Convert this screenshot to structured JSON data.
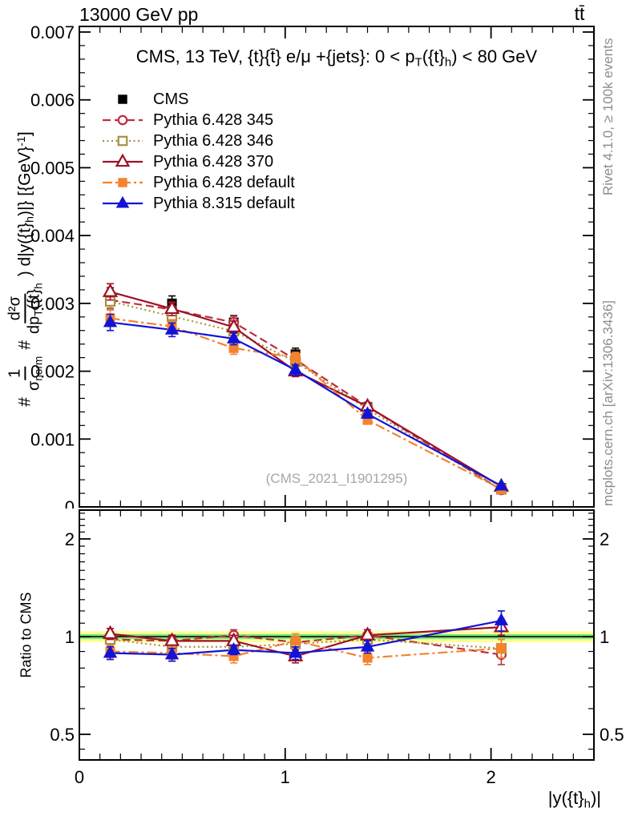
{
  "header": {
    "beam_energy": "13000 GeV pp",
    "process": "tt̄"
  },
  "title": "CMS, 13 TeV, {t}{t̄} e/μ +{jets}: 0 <  p_{T}({t}_{h}) < 80 GeV",
  "watermark": "(CMS_2021_I1901295)",
  "right_margin": {
    "generator_info": "Rivet 4.1.0, ≥ 100k events",
    "site_info": "mcplots.cern.ch [arXiv:1306.3436]"
  },
  "ylabel": {
    "prefix1": "#",
    "frac1_num": "1",
    "frac1_den": "σ_{norm}",
    "prefix2": "#",
    "frac2_num": "d²σ",
    "frac2_den": "dp_{T}({t}_{h}",
    "suffix": ") d|y({t}_{h})|} [{GeV}^{-1}]"
  },
  "ratio_ylabel": "Ratio to CMS",
  "xlabel": "|y({t}_{h})|",
  "chart_data": {
    "type": "line",
    "title": "CMS, 13 TeV, {t}{t̄} e/μ +{jets}: 0 < p_T({t}_h) < 80 GeV",
    "xlabel": "|y({t}_h)|",
    "ylabel": "1/σ_norm d²σ/dp_T({t}_h) d|y({t}_h)| [GeV⁻¹]",
    "ratio_ylabel": "Ratio to CMS",
    "xlim": [
      0,
      2.5
    ],
    "ylim": [
      0,
      0.00708
    ],
    "ratio_ylim": [
      0.417,
      2.44
    ],
    "grid": false,
    "legend_position": "upper-left-inside",
    "x": [
      0.15,
      0.45,
      0.75,
      1.05,
      1.4,
      2.05
    ],
    "bin_edges": [
      0,
      0.3,
      0.6,
      0.9,
      1.2,
      1.6,
      2.5
    ],
    "axes": {
      "xticks": [
        {
          "v": 0,
          "t": "0"
        },
        {
          "v": 1,
          "t": "1"
        },
        {
          "v": 2,
          "t": "2"
        }
      ],
      "main_yticks": [
        {
          "v": 0.001,
          "t": "0.001"
        },
        {
          "v": 0.002,
          "t": "0.002"
        },
        {
          "v": 0.003,
          "t": "0.003"
        },
        {
          "v": 0.004,
          "t": "0.004"
        },
        {
          "v": 0.005,
          "t": "0.005"
        },
        {
          "v": 0.006,
          "t": "0.006"
        },
        {
          "v": 0.007,
          "t": "0.007"
        }
      ],
      "main_ytick_zero": {
        "v": 0,
        "t": "0"
      },
      "ratio_yticks": [
        {
          "v": 0.5,
          "t": "0.5"
        },
        {
          "v": 1,
          "t": "1"
        },
        {
          "v": 2,
          "t": "2"
        }
      ]
    },
    "band": {
      "center": 1.0,
      "yellow_range": [
        0.96,
        1.04
      ],
      "green_range": [
        0.982,
        1.018
      ],
      "yellow_color": "#ffff99",
      "green_color": "#7fe87f"
    },
    "series": [
      {
        "name": "CMS",
        "slug": "cms",
        "color": "#000000",
        "line": "none",
        "marker": "square",
        "filled": true,
        "values": [
          0.0031,
          0.003,
          0.00272,
          0.00225,
          0.00147,
          0.00028
        ],
        "errors": [
          0.00013,
          0.00011,
          0.0001,
          9e-05,
          6e-05,
          3e-05
        ]
      },
      {
        "name": "Pythia 6.428 345",
        "slug": "pythia-6428-345",
        "color": "#bc2f42",
        "line": "dashed",
        "marker": "circle",
        "filled": false,
        "values": [
          0.00305,
          0.00291,
          0.00272,
          0.00217,
          0.00148,
          0.00025
        ],
        "errors": [
          0.00012,
          0.0001,
          9e-05,
          8e-05,
          6e-05,
          3e-05
        ],
        "ratio": [
          0.98,
          0.97,
          1.01,
          0.96,
          1.01,
          0.88
        ],
        "ratio_errors": [
          0.04,
          0.04,
          0.04,
          0.04,
          0.04,
          0.06
        ]
      },
      {
        "name": "Pythia 6.428 346",
        "slug": "pythia-6428-346",
        "color": "#a8903d",
        "line": "dotted",
        "marker": "square",
        "filled": false,
        "values": [
          0.00303,
          0.00281,
          0.00259,
          0.00214,
          0.00144,
          0.00026
        ],
        "errors": [
          0.00012,
          0.0001,
          9e-05,
          8e-05,
          6e-05,
          3e-05
        ],
        "ratio": [
          0.98,
          0.93,
          0.93,
          0.95,
          0.98,
          0.92
        ],
        "ratio_errors": [
          0.04,
          0.04,
          0.04,
          0.04,
          0.04,
          0.06
        ]
      },
      {
        "name": "Pythia 6.428 370",
        "slug": "pythia-6428-370",
        "color": "#9e1126",
        "line": "solid",
        "marker": "triangle",
        "filled": false,
        "values": [
          0.00317,
          0.00292,
          0.00265,
          0.002,
          0.00148,
          0.0003
        ],
        "errors": [
          0.00012,
          0.0001,
          9e-05,
          8e-05,
          6e-05,
          3e-05
        ],
        "ratio": [
          1.02,
          0.97,
          0.97,
          0.87,
          1.01,
          1.07
        ],
        "ratio_errors": [
          0.04,
          0.04,
          0.04,
          0.04,
          0.04,
          0.06
        ]
      },
      {
        "name": "Pythia 6.428 default",
        "slug": "pythia-6428-default",
        "color": "#f5822d",
        "line": "dashdot",
        "marker": "square",
        "filled": true,
        "values": [
          0.00278,
          0.00266,
          0.00234,
          0.0022,
          0.00128,
          0.00026
        ],
        "errors": [
          0.00012,
          0.0001,
          9e-05,
          8e-05,
          6e-05,
          3e-05
        ],
        "ratio": [
          0.9,
          0.89,
          0.87,
          0.97,
          0.86,
          0.92
        ],
        "ratio_errors": [
          0.04,
          0.04,
          0.04,
          0.05,
          0.04,
          0.06
        ]
      },
      {
        "name": "Pythia 8.315 default",
        "slug": "pythia-8315-default",
        "color": "#1313d7",
        "line": "solid",
        "marker": "triangle",
        "filled": true,
        "values": [
          0.00272,
          0.00261,
          0.00248,
          0.00202,
          0.00137,
          0.00031
        ],
        "errors": [
          0.00012,
          0.0001,
          9e-05,
          8e-05,
          6e-05,
          3e-05
        ],
        "ratio": [
          0.89,
          0.88,
          0.91,
          0.89,
          0.93,
          1.12
        ],
        "ratio_errors": [
          0.04,
          0.04,
          0.03,
          0.04,
          0.04,
          0.08
        ]
      }
    ]
  }
}
